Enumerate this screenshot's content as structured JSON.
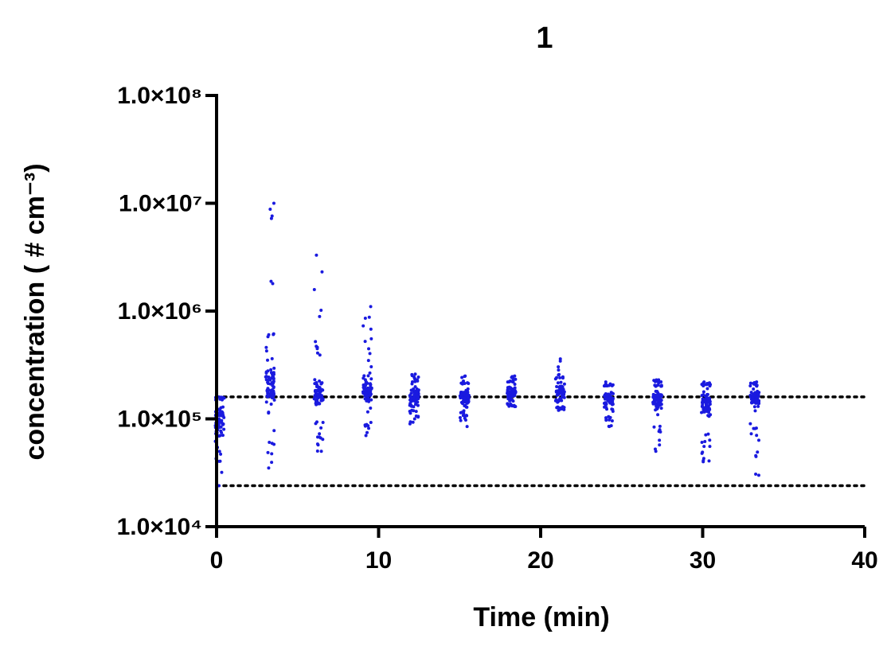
{
  "chart_data": {
    "type": "scatter",
    "title": "1",
    "xlabel": "Time (min)",
    "ylabel": "concentration ( # cm⁻³)",
    "xlim": [
      0,
      40
    ],
    "ylim": [
      10000,
      100000000
    ],
    "yscale": "log",
    "grid": false,
    "legend": "none",
    "x_ticks": [
      0,
      10,
      20,
      30,
      40
    ],
    "x_tick_labels": [
      "0",
      "10",
      "20",
      "30",
      "40"
    ],
    "y_ticks": [
      10000,
      100000,
      1000000,
      10000000,
      100000000
    ],
    "y_tick_labels": [
      "1.0×10⁴",
      "1.0×10⁵",
      "1.0×10⁶",
      "1.0×10⁷",
      "1.0×10⁸"
    ],
    "reference_lines": [
      {
        "y": 160000,
        "x_range": [
          0,
          40
        ],
        "style": "dotted",
        "color": "#000000"
      },
      {
        "y": 24000,
        "x_range": [
          0,
          40
        ],
        "style": "dotted",
        "color": "#000000"
      }
    ],
    "point_color": "#1a1adf",
    "groups": [
      {
        "x": 0.2,
        "min": 24000,
        "max": 160000,
        "bulk_low": 60000,
        "bulk_high": 150000,
        "max_outlier": 160000
      },
      {
        "x": 3.3,
        "min": 35000,
        "max": 10000000,
        "bulk_low": 120000,
        "bulk_high": 350000,
        "max_outlier": 10000000
      },
      {
        "x": 6.3,
        "min": 50000,
        "max": 3300000,
        "bulk_low": 100000,
        "bulk_high": 300000,
        "max_outlier": 3300000
      },
      {
        "x": 9.3,
        "min": 70000,
        "max": 1100000,
        "bulk_low": 130000,
        "bulk_high": 250000,
        "max_outlier": 1100000
      },
      {
        "x": 12.2,
        "min": 90000,
        "max": 260000,
        "bulk_low": 120000,
        "bulk_high": 220000,
        "max_outlier": 260000
      },
      {
        "x": 15.3,
        "min": 85000,
        "max": 250000,
        "bulk_low": 120000,
        "bulk_high": 210000,
        "max_outlier": 250000
      },
      {
        "x": 18.2,
        "min": 130000,
        "max": 250000,
        "bulk_low": 140000,
        "bulk_high": 220000,
        "max_outlier": 250000
      },
      {
        "x": 21.2,
        "min": 120000,
        "max": 360000,
        "bulk_low": 130000,
        "bulk_high": 230000,
        "max_outlier": 360000
      },
      {
        "x": 24.2,
        "min": 85000,
        "max": 220000,
        "bulk_low": 110000,
        "bulk_high": 200000,
        "max_outlier": 220000
      },
      {
        "x": 27.2,
        "min": 50000,
        "max": 230000,
        "bulk_low": 110000,
        "bulk_high": 200000,
        "max_outlier": 230000
      },
      {
        "x": 30.2,
        "min": 40000,
        "max": 220000,
        "bulk_low": 90000,
        "bulk_high": 200000,
        "max_outlier": 220000
      },
      {
        "x": 33.2,
        "min": 30000,
        "max": 220000,
        "bulk_low": 120000,
        "bulk_high": 200000,
        "max_outlier": 220000
      }
    ]
  }
}
